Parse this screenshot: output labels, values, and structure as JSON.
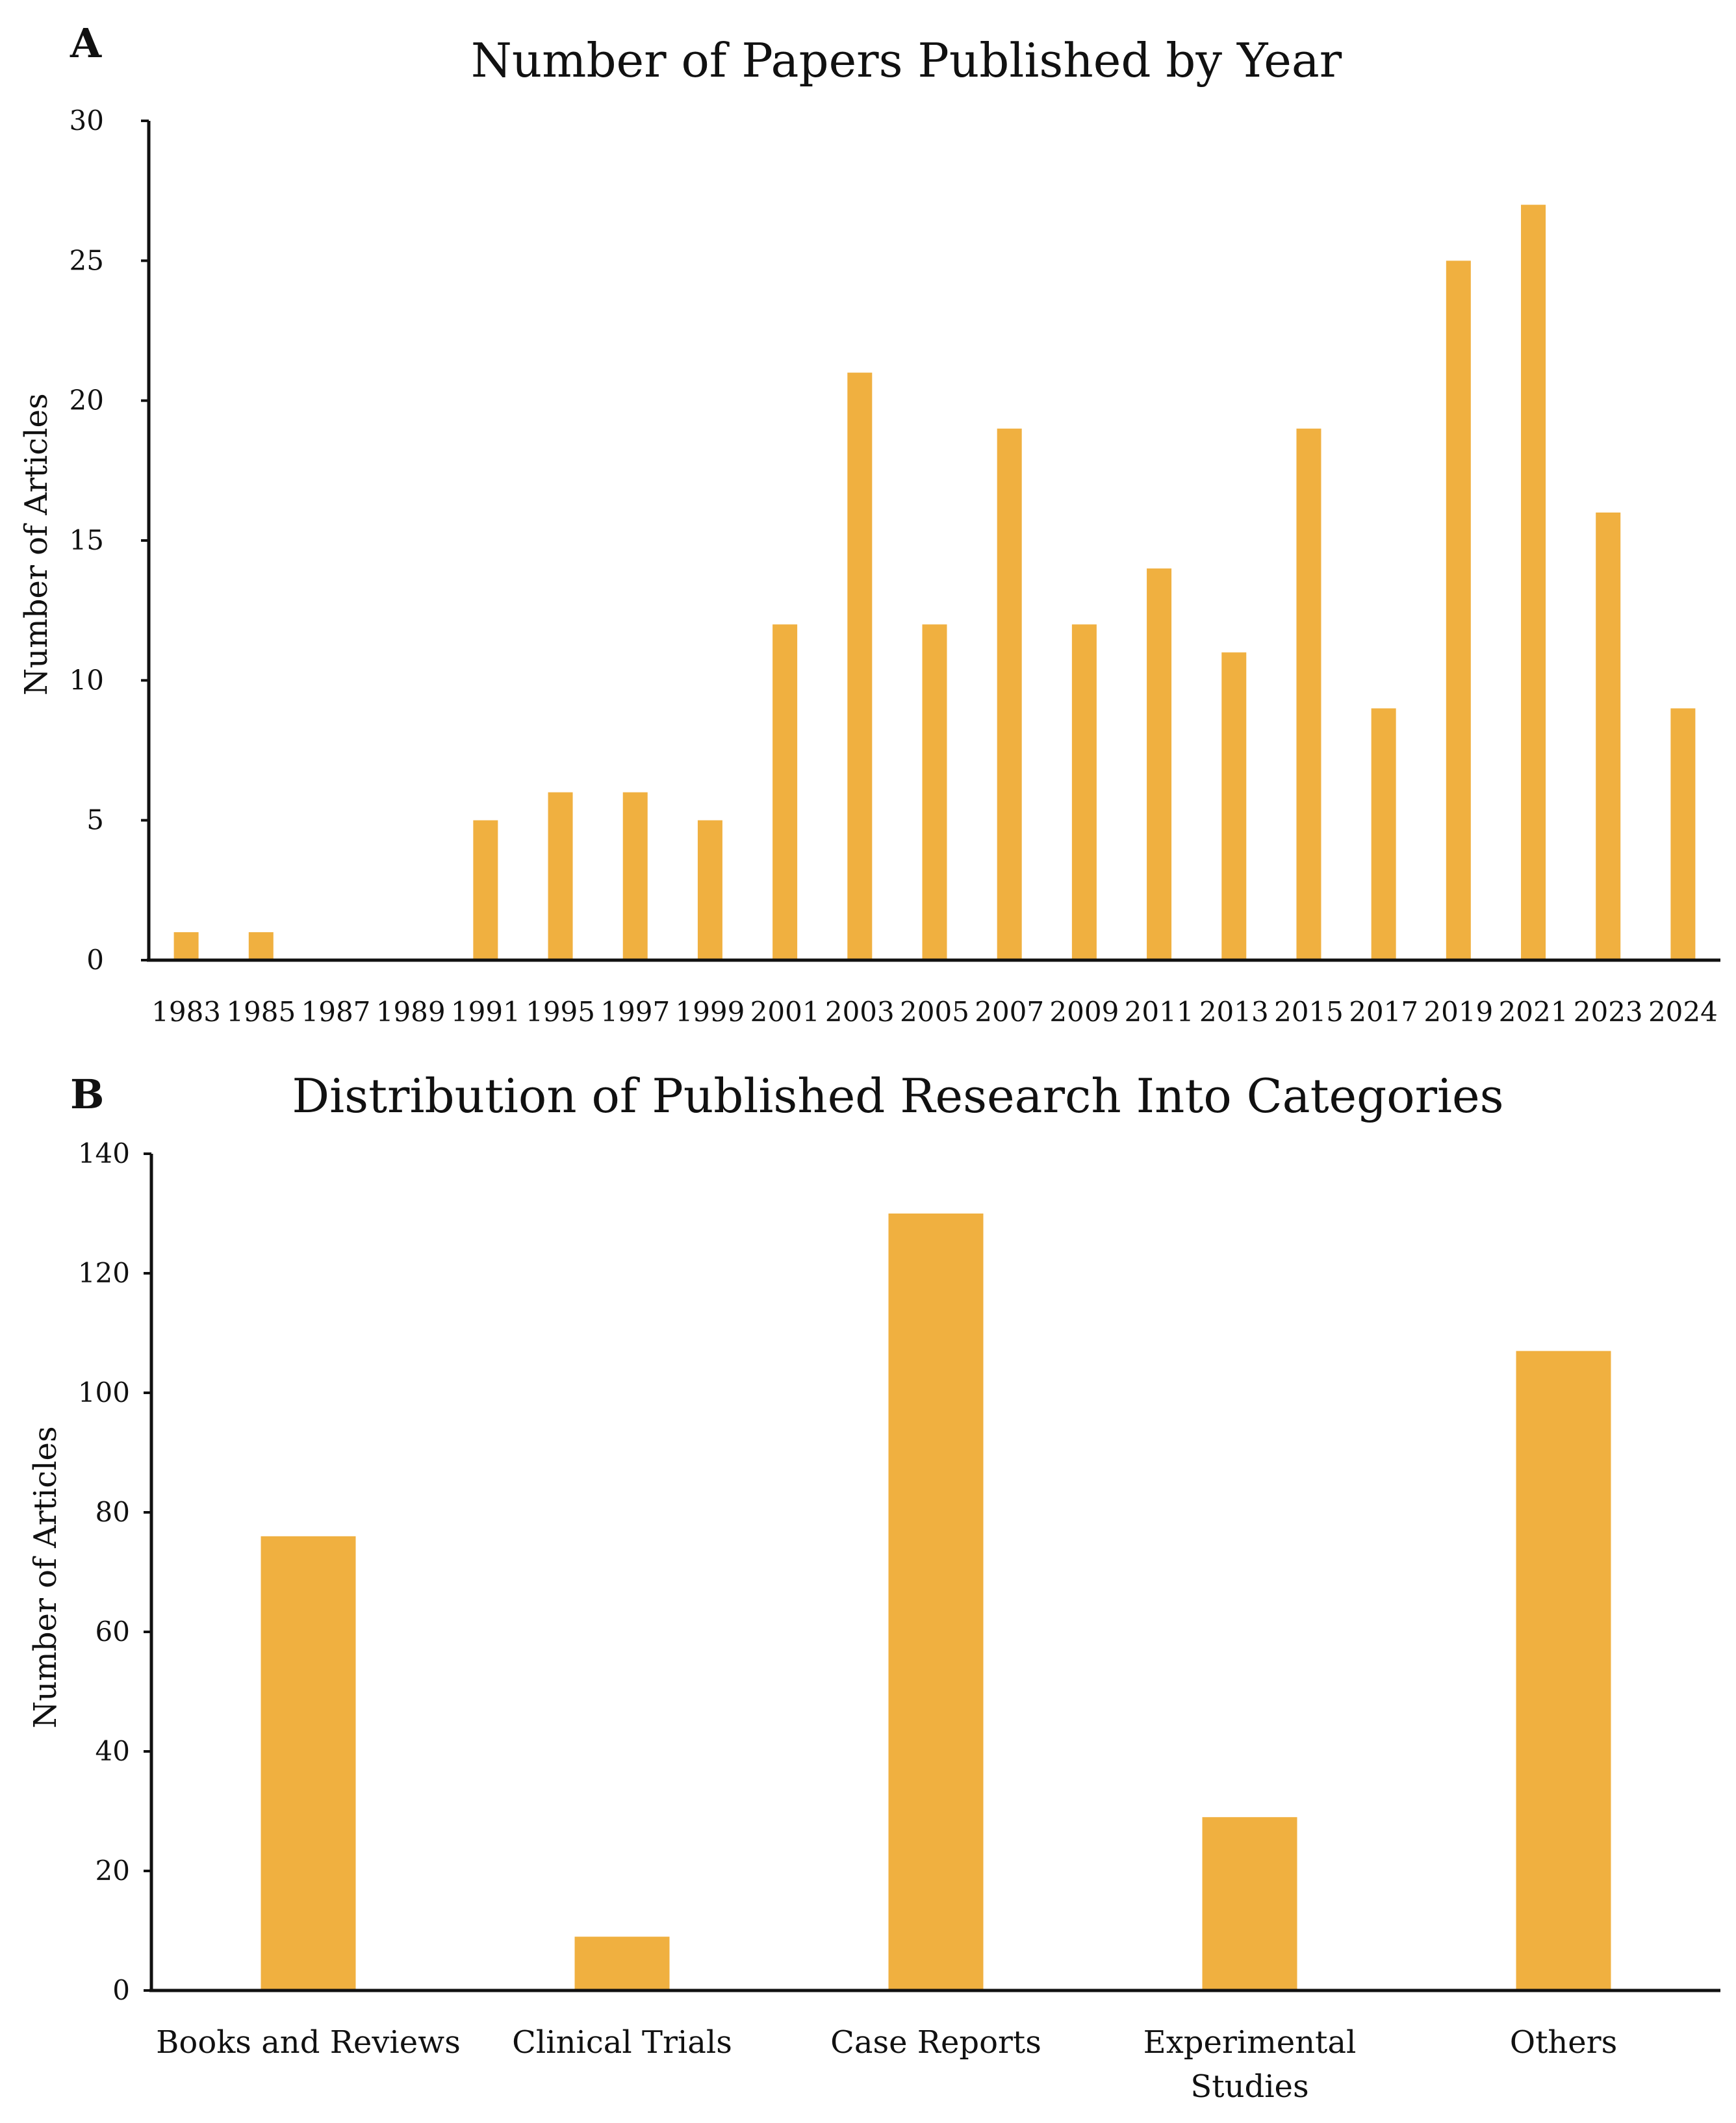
{
  "bar_color": "#F0B040",
  "chart_data": [
    {
      "type": "bar",
      "panel_label": "A",
      "title": "Number of Papers Published by Year",
      "xlabel": "",
      "ylabel": "Number of Articles",
      "ylim": [
        0,
        30
      ],
      "yticks": [
        0,
        5,
        10,
        15,
        20,
        25,
        30
      ],
      "categories": [
        "1983",
        "1985",
        "1987",
        "1989",
        "1991",
        "1995",
        "1997",
        "1999",
        "2001",
        "2003",
        "2005",
        "2007",
        "2009",
        "2011",
        "2013",
        "2015",
        "2017",
        "2019",
        "2021",
        "2023",
        "2024"
      ],
      "values": [
        1,
        1,
        0,
        0,
        5,
        6,
        6,
        5,
        12,
        21,
        12,
        19,
        12,
        14,
        11,
        19,
        9,
        25,
        27,
        16,
        9
      ]
    },
    {
      "type": "bar",
      "panel_label": "B",
      "title": "Distribution of Published Research Into Categories",
      "xlabel": "",
      "ylabel": "Number of Articles",
      "ylim": [
        0,
        140
      ],
      "yticks": [
        0,
        20,
        40,
        60,
        80,
        100,
        120,
        140
      ],
      "categories": [
        "Books and Reviews",
        "Clinical Trials",
        "Case Reports",
        "Experimental\nStudies",
        "Others"
      ],
      "values": [
        76,
        9,
        130,
        29,
        107
      ]
    }
  ]
}
